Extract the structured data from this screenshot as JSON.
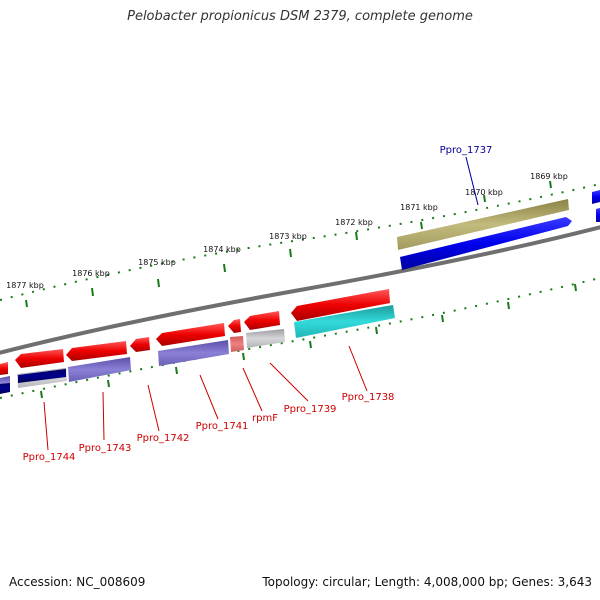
{
  "title": "Pelobacter propionicus DSM 2379, complete genome",
  "footer": {
    "accession": "Accession: NC_008609",
    "summary": "Topology: circular; Length: 4,008,000 bp; Genes: 3,643"
  },
  "tick_labels": [
    "1869 kbp",
    "1870 kbp",
    "1871 kbp",
    "1872 kbp",
    "1873 kbp",
    "1874 kbp",
    "1875 kbp",
    "1876 kbp",
    "1877 kbp"
  ],
  "genes": [
    {
      "id": "Ppro_1737",
      "label": "Ppro_1737",
      "strand": "+",
      "color": "#000099"
    },
    {
      "id": "Ppro_1738",
      "label": "Ppro_1738",
      "strand": "-",
      "color": "#cc0000"
    },
    {
      "id": "Ppro_1739",
      "label": "Ppro_1739",
      "strand": "-",
      "color": "#cc0000"
    },
    {
      "id": "rpmF",
      "label": "rpmF",
      "strand": "-",
      "color": "#cc0000"
    },
    {
      "id": "Ppro_1741",
      "label": "Ppro_1741",
      "strand": "-",
      "color": "#cc0000"
    },
    {
      "id": "Ppro_1742",
      "label": "Ppro_1742",
      "strand": "-",
      "color": "#cc0000"
    },
    {
      "id": "Ppro_1743",
      "label": "Ppro_1743",
      "strand": "-",
      "color": "#cc0000"
    },
    {
      "id": "Ppro_1744",
      "label": "Ppro_1744",
      "strand": "-",
      "color": "#cc0000"
    }
  ],
  "colors": {
    "backbone": "#7a7a7a",
    "forward_cds": "#ee0000",
    "blue_cds": "#0000ee",
    "olive_cog": "#b5ad6e",
    "teal_cog": "#27cccc",
    "purple_cog": "#7a6ec8",
    "grey_cog": "#c2c2c6",
    "tick_green": "#1a7a1a",
    "forward_label": "#000099",
    "reverse_label": "#cc0000"
  }
}
